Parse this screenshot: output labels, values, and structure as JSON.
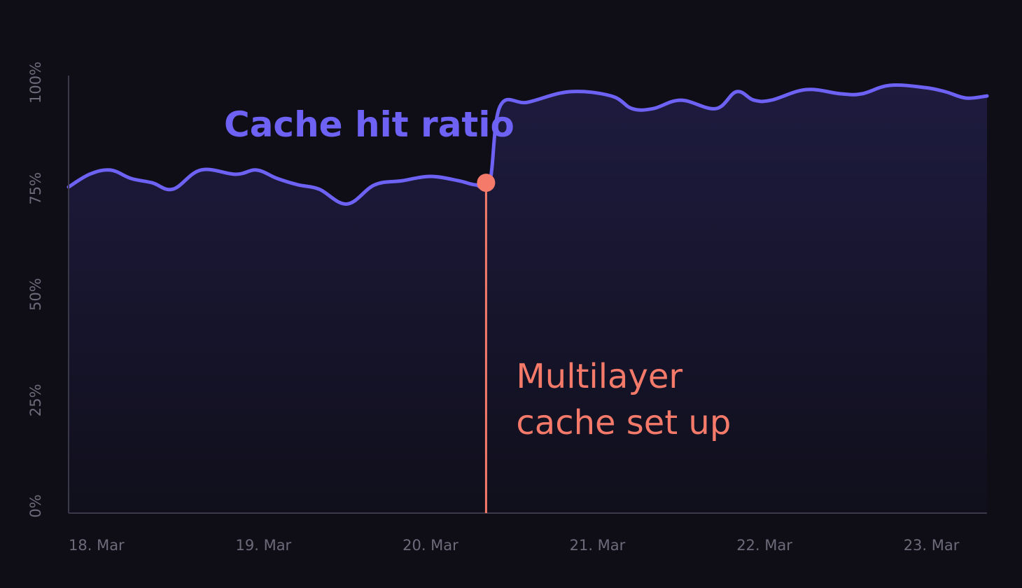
{
  "chart_data": {
    "type": "area",
    "x_type": "date",
    "series": [
      {
        "name": "Cache hit ratio",
        "color": "#6e62f5",
        "points": [
          [
            "2024-03-18 00:00",
            77
          ],
          [
            "2024-03-18 03:00",
            80
          ],
          [
            "2024-03-18 06:00",
            81
          ],
          [
            "2024-03-18 09:00",
            79
          ],
          [
            "2024-03-18 12:00",
            78
          ],
          [
            "2024-03-18 15:00",
            76.5
          ],
          [
            "2024-03-18 19:00",
            81
          ],
          [
            "2024-03-19 00:00",
            80
          ],
          [
            "2024-03-19 03:00",
            81
          ],
          [
            "2024-03-19 06:00",
            79
          ],
          [
            "2024-03-19 09:00",
            77.5
          ],
          [
            "2024-03-19 12:00",
            76.5
          ],
          [
            "2024-03-19 16:00",
            73
          ],
          [
            "2024-03-19 20:00",
            77.5
          ],
          [
            "2024-03-20 00:00",
            78.5
          ],
          [
            "2024-03-20 04:00",
            79.5
          ],
          [
            "2024-03-20 08:00",
            78.5
          ],
          [
            "2024-03-20 10:30",
            77.5
          ],
          [
            "2024-03-20 12:30",
            78
          ],
          [
            "2024-03-20 14:00",
            96
          ],
          [
            "2024-03-20 18:00",
            97
          ],
          [
            "2024-03-21 00:00",
            99.5
          ],
          [
            "2024-03-21 06:00",
            98.5
          ],
          [
            "2024-03-21 09:00",
            95.5
          ],
          [
            "2024-03-21 12:00",
            95.5
          ],
          [
            "2024-03-21 16:00",
            97.5
          ],
          [
            "2024-03-21 21:00",
            95.5
          ],
          [
            "2024-03-22 00:00",
            99.5
          ],
          [
            "2024-03-22 02:30",
            97.5
          ],
          [
            "2024-03-22 05:00",
            97.5
          ],
          [
            "2024-03-22 10:00",
            100
          ],
          [
            "2024-03-22 15:00",
            99
          ],
          [
            "2024-03-22 18:00",
            99
          ],
          [
            "2024-03-22 22:00",
            101
          ],
          [
            "2024-03-23 03:00",
            100.5
          ],
          [
            "2024-03-23 06:00",
            99.5
          ],
          [
            "2024-03-23 09:00",
            98
          ],
          [
            "2024-03-23 12:00",
            98.5
          ]
        ]
      }
    ],
    "x_ticks": [
      "18. Mar",
      "19. Mar",
      "20. Mar",
      "21. Mar",
      "22. Mar",
      "23. Mar"
    ],
    "x_tick_dates": [
      "2024-03-18",
      "2024-03-19",
      "2024-03-20",
      "2024-03-21",
      "2024-03-22",
      "2024-03-23"
    ],
    "y_ticks": [
      "0%",
      "25%",
      "50%",
      "75%",
      "100%"
    ],
    "y_tick_values": [
      0,
      25,
      50,
      75,
      100
    ],
    "xlim": [
      "2024-03-18 00:00",
      "2024-03-23 12:00"
    ],
    "ylim": [
      0,
      100
    ],
    "grid": false,
    "title": "",
    "xlabel": "",
    "ylabel": "",
    "annotations": [
      {
        "x": "2024-03-20 12:00",
        "y": 78,
        "lines": [
          "Multilayer",
          "cache set up"
        ],
        "color": "#f57a6a"
      }
    ]
  }
}
